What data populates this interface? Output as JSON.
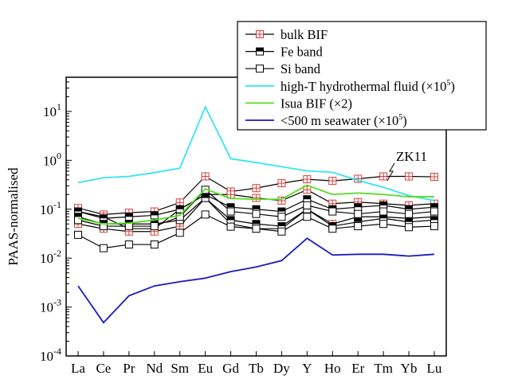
{
  "chart_data": {
    "type": "line",
    "title": "",
    "xlabel": "",
    "ylabel": "PAAS-normalised",
    "yscale": "log",
    "ylim": [
      0.0001,
      50
    ],
    "yticks": [
      {
        "value": 10,
        "base": "10",
        "exp": "1"
      },
      {
        "value": 1,
        "base": "10",
        "exp": "0"
      },
      {
        "value": 0.1,
        "base": "10",
        "exp": "-1"
      },
      {
        "value": 0.01,
        "base": "10",
        "exp": "-2"
      },
      {
        "value": 0.001,
        "base": "10",
        "exp": "-3"
      },
      {
        "value": 0.0001,
        "base": "10",
        "exp": "-4"
      }
    ],
    "categories": [
      "La",
      "Ce",
      "Pr",
      "Nd",
      "Sm",
      "Eu",
      "Gd",
      "Tb",
      "Dy",
      "Y",
      "Ho",
      "Er",
      "Tm",
      "Yb",
      "Lu"
    ],
    "annotation": "ZK11",
    "legend": {
      "placement": "top-right",
      "entries": [
        {
          "label": "bulk BIF",
          "marker": "square-cross",
          "color": "#d04040"
        },
        {
          "label": "Fe band",
          "marker": "square-half-filled",
          "color": "#000000"
        },
        {
          "label": "Si band",
          "marker": "square-open",
          "color": "#000000"
        },
        {
          "label": "high-T hydrothermal fluid (×10",
          "sup": "5",
          "tail": ")",
          "color": "#33e5f0"
        },
        {
          "label": "Isua BIF (×2)",
          "color": "#55dd22"
        },
        {
          "label": "<500 m seawater (×10",
          "sup": "5",
          "tail": ")",
          "color": "#1a1ac0"
        }
      ]
    },
    "series": [
      {
        "group": "bulk BIF",
        "marker": "square-cross",
        "color": "#000000",
        "values": [
          0.106,
          0.078,
          0.085,
          0.09,
          0.137,
          0.47,
          0.23,
          0.27,
          0.34,
          0.41,
          0.38,
          0.42,
          0.47,
          0.47,
          0.46
        ]
      },
      {
        "group": "bulk BIF",
        "marker": "square-cross",
        "color": "#000000",
        "values": [
          0.09,
          0.07,
          0.04,
          0.04,
          0.1,
          0.2,
          0.2,
          0.17,
          0.15,
          0.25,
          0.13,
          0.14,
          0.13,
          0.12,
          0.13
        ]
      },
      {
        "group": "bulk BIF",
        "marker": "square-cross",
        "color": "#000000",
        "values": [
          0.05,
          0.04,
          0.035,
          0.035,
          0.045,
          0.17,
          0.05,
          0.04,
          0.04,
          0.1,
          0.05,
          0.07,
          0.07,
          0.065,
          0.07
        ]
      },
      {
        "group": "Fe band",
        "marker": "square-half-filled",
        "color": "#000000",
        "values": [
          0.09,
          0.065,
          0.07,
          0.075,
          0.1,
          0.2,
          0.11,
          0.1,
          0.09,
          0.16,
          0.1,
          0.11,
          0.12,
          0.1,
          0.11
        ]
      },
      {
        "group": "Fe band",
        "marker": "square-half-filled",
        "color": "#000000",
        "values": [
          0.07,
          0.05,
          0.05,
          0.05,
          0.06,
          0.17,
          0.06,
          0.05,
          0.045,
          0.1,
          0.045,
          0.055,
          0.065,
          0.055,
          0.06
        ]
      },
      {
        "group": "Si band",
        "marker": "square-open",
        "color": "#000000",
        "values": [
          0.06,
          0.045,
          0.045,
          0.045,
          0.07,
          0.25,
          0.09,
          0.08,
          0.07,
          0.12,
          0.09,
          0.08,
          0.09,
          0.08,
          0.09
        ]
      },
      {
        "group": "Si band",
        "marker": "square-open",
        "color": "#000000",
        "values": [
          0.03,
          0.016,
          0.019,
          0.019,
          0.033,
          0.078,
          0.044,
          0.04,
          0.035,
          0.07,
          0.04,
          0.045,
          0.05,
          0.043,
          0.045
        ]
      },
      {
        "group": "high-T hydrothermal fluid",
        "color": "#33e5f0",
        "values": [
          0.35,
          0.44,
          0.47,
          0.56,
          0.69,
          12.3,
          1.08,
          0.9,
          0.74,
          0.61,
          0.57,
          0.39,
          0.28,
          0.19,
          0.15
        ]
      },
      {
        "group": "Isua BIF",
        "color": "#55dd22",
        "values": [
          0.065,
          0.05,
          0.052,
          0.06,
          0.075,
          0.26,
          0.166,
          0.16,
          0.16,
          0.31,
          0.2,
          0.215,
          0.2,
          0.18,
          0.18
        ]
      },
      {
        "group": "<500 m seawater",
        "color": "#1a1ac0",
        "values": [
          0.0027,
          0.00048,
          0.0017,
          0.0027,
          0.0033,
          0.0039,
          0.0053,
          0.0066,
          0.0089,
          0.0255,
          0.0116,
          0.012,
          0.012,
          0.011,
          0.012
        ]
      }
    ]
  }
}
